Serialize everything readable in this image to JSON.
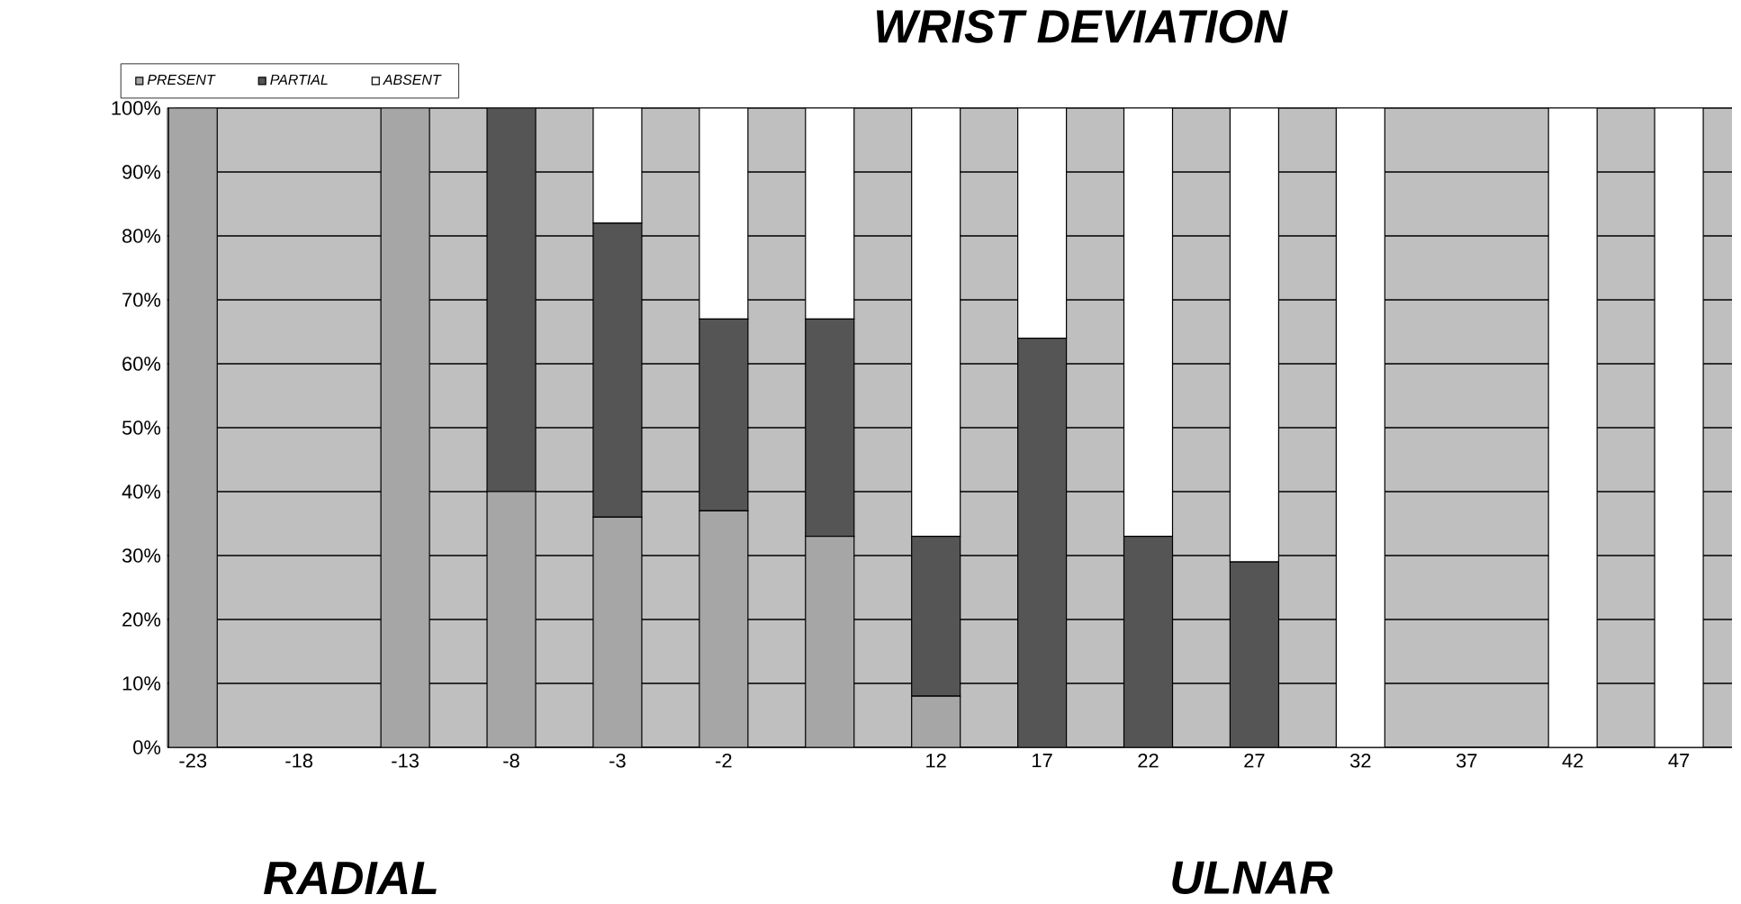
{
  "chart_data": {
    "type": "bar",
    "title": "WRIST DEVIATION",
    "stacked": true,
    "categories": [
      "-23",
      "-18",
      "-13",
      "-8",
      "-3",
      "-2",
      null,
      "12",
      "17",
      "22",
      "27",
      "32",
      "37",
      "42",
      "47"
    ],
    "series": [
      {
        "name": "PRESENT",
        "color": "#a6a6a6",
        "values": [
          100,
          0,
          100,
          40,
          36,
          37,
          33,
          8,
          0,
          0,
          0,
          0,
          0,
          0,
          0
        ]
      },
      {
        "name": "PARTIAL",
        "color": "#555555",
        "values": [
          0,
          0,
          0,
          60,
          46,
          30,
          34,
          25,
          64,
          33,
          29,
          0,
          0,
          0,
          0
        ]
      },
      {
        "name": "ABSENT",
        "color": "#ffffff",
        "values": [
          0,
          0,
          0,
          0,
          18,
          33,
          33,
          67,
          36,
          67,
          71,
          100,
          0,
          100,
          100
        ]
      }
    ],
    "ylim": [
      0,
      100
    ],
    "yticks": [
      {
        "value": 0,
        "label": "0%"
      },
      {
        "value": 10,
        "label": "10%"
      },
      {
        "value": 20,
        "label": "20%"
      },
      {
        "value": 30,
        "label": "30%"
      },
      {
        "value": 40,
        "label": "40%"
      },
      {
        "value": 50,
        "label": "50%"
      },
      {
        "value": 60,
        "label": "60%"
      },
      {
        "value": 70,
        "label": "70%"
      },
      {
        "value": 80,
        "label": "80%"
      },
      {
        "value": 90,
        "label": "90%"
      },
      {
        "value": 100,
        "label": "100%"
      }
    ],
    "grid": "y",
    "legend": "top left",
    "annotations": [
      "RADIAL",
      "ULNAR"
    ]
  }
}
